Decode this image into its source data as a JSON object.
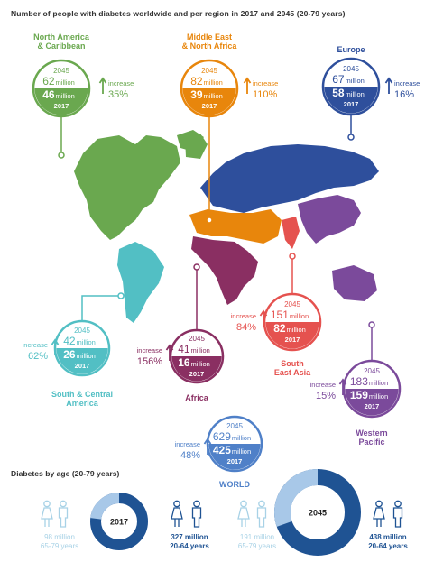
{
  "title": "Number of people with diabetes worldwide and per region in 2017 and 2045 (20-79 years)",
  "age_title": "Diabetes by age (20-79 years)",
  "colors": {
    "north_america": "#6aa84f",
    "middle_east": "#e8860c",
    "europe": "#2e4f9c",
    "south_america": "#52bfc4",
    "africa": "#8a2f62",
    "se_asia": "#e5524f",
    "w_pacific": "#7b4a9b",
    "world": "#4f80c8",
    "age_dark": "#1f5393",
    "age_light": "#a8c8e8",
    "icon_light": "#a8d2e6",
    "icon_dark": "#1f5393"
  },
  "chart_data": {
    "type": "infographic",
    "title": "Number of people with diabetes worldwide and per region in 2017 and 2045 (20-79 years)",
    "units": "million",
    "year_labels": {
      "y2045": "2045",
      "y2017": "2017"
    },
    "increase_label": "increase",
    "million_label": "million",
    "regions": [
      {
        "key": "north_america",
        "name": [
          "North America",
          "& Caribbean"
        ],
        "v2045": 62,
        "v2017": 46,
        "increase": "35%"
      },
      {
        "key": "middle_east",
        "name": [
          "Middle East",
          "& North Africa"
        ],
        "v2045": 82,
        "v2017": 39,
        "increase": "110%"
      },
      {
        "key": "europe",
        "name": [
          "Europe"
        ],
        "v2045": 67,
        "v2017": 58,
        "increase": "16%"
      },
      {
        "key": "south_america",
        "name": [
          "South & Central",
          "America"
        ],
        "v2045": 42,
        "v2017": 26,
        "increase": "62%"
      },
      {
        "key": "africa",
        "name": [
          "Africa"
        ],
        "v2045": 41,
        "v2017": 16,
        "increase": "156%"
      },
      {
        "key": "se_asia",
        "name": [
          "South",
          "East Asia"
        ],
        "v2045": 151,
        "v2017": 82,
        "increase": "84%"
      },
      {
        "key": "w_pacific",
        "name": [
          "Western",
          "Pacific"
        ],
        "v2045": 183,
        "v2017": 159,
        "increase": "15%"
      },
      {
        "key": "world",
        "name": [
          "WORLD"
        ],
        "v2045": 629,
        "v2017": 425,
        "increase": "48%"
      }
    ],
    "age": [
      {
        "year": "2017",
        "older": 98,
        "younger": 327,
        "older_label": [
          "98 million",
          "65-79 years"
        ],
        "younger_label": [
          "327 million",
          "20-64 years"
        ]
      },
      {
        "year": "2045",
        "older": 191,
        "younger": 438,
        "older_label": [
          "191 million",
          "65-79 years"
        ],
        "younger_label": [
          "438 million",
          "20-64 years"
        ]
      }
    ]
  }
}
